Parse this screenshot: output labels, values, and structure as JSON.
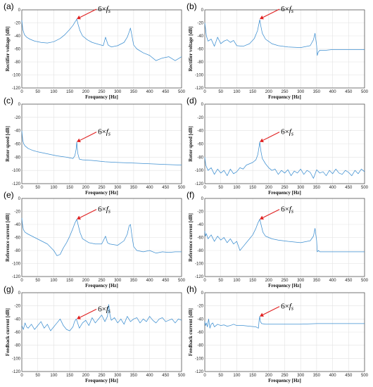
{
  "chart_data": [
    {
      "panel": "(a)",
      "type": "line",
      "xlabel": "Frequency [Hz]",
      "ylabel": "Rectifier voltage [dB]",
      "xlim": [
        0,
        500
      ],
      "ylim": [
        -120,
        0
      ],
      "xticks": [
        "0",
        "50",
        "100",
        "150",
        "200",
        "250",
        "300",
        "350",
        "400",
        "450",
        "500"
      ],
      "yticks": [
        "-120",
        "-100",
        "-80",
        "-60",
        "-40",
        "-20",
        "0"
      ],
      "grid": true,
      "annotation": {
        "text_pre": "6×",
        "text_var": "f",
        "text_sub": "s",
        "x": 172,
        "y": -14
      },
      "series": [
        {
          "x": [
            0,
            3,
            8,
            15,
            25,
            40,
            60,
            80,
            100,
            120,
            135,
            150,
            160,
            166,
            170,
            172,
            176,
            182,
            190,
            205,
            220,
            240,
            255,
            262,
            270,
            280,
            300,
            320,
            330,
            336,
            340,
            344,
            350,
            360,
            380,
            400,
            420,
            440,
            460,
            480,
            500
          ],
          "y": [
            -16,
            -30,
            -38,
            -42,
            -45,
            -48,
            -50,
            -51,
            -49,
            -44,
            -38,
            -30,
            -24,
            -19,
            -16,
            -14,
            -22,
            -32,
            -40,
            -46,
            -50,
            -53,
            -55,
            -42,
            -54,
            -57,
            -55,
            -50,
            -42,
            -34,
            -28,
            -38,
            -54,
            -60,
            -66,
            -70,
            -78,
            -74,
            -72,
            -78,
            -72
          ]
        }
      ]
    },
    {
      "panel": "(b)",
      "type": "line",
      "xlabel": "Frequency [Hz]",
      "ylabel": "Rectifier voltage [dB]",
      "xlim": [
        0,
        500
      ],
      "ylim": [
        -120,
        0
      ],
      "xticks": [
        "0",
        "50",
        "100",
        "150",
        "200",
        "250",
        "300",
        "350",
        "400",
        "450",
        "500"
      ],
      "yticks": [
        "-120",
        "-100",
        "-80",
        "-60",
        "-40",
        "-20",
        "0"
      ],
      "grid": true,
      "annotation": {
        "text_pre": "6×",
        "text_var": "f",
        "text_sub": "s",
        "x": 172,
        "y": -14
      },
      "series": [
        {
          "x": [
            0,
            2,
            5,
            10,
            20,
            30,
            40,
            50,
            60,
            70,
            80,
            90,
            100,
            120,
            140,
            155,
            165,
            170,
            172,
            175,
            180,
            190,
            210,
            230,
            260,
            300,
            330,
            340,
            345,
            350,
            352,
            355,
            360,
            380,
            400,
            430,
            460,
            500
          ],
          "y": [
            -20,
            -28,
            -40,
            -48,
            -45,
            -56,
            -42,
            -52,
            -48,
            -46,
            -50,
            -47,
            -55,
            -56,
            -52,
            -44,
            -32,
            -20,
            -15,
            -24,
            -36,
            -45,
            -52,
            -55,
            -57,
            -58,
            -55,
            -46,
            -36,
            -55,
            -70,
            -65,
            -62,
            -62,
            -61,
            -61,
            -61,
            -61
          ]
        }
      ]
    },
    {
      "panel": "(c)",
      "type": "line",
      "xlabel": "Frequency [Hz]",
      "ylabel": "Rotor speed [dB]",
      "xlim": [
        0,
        500
      ],
      "ylim": [
        -120,
        0
      ],
      "xticks": [
        "0",
        "50",
        "100",
        "150",
        "200",
        "250",
        "300",
        "350",
        "400",
        "450",
        "500"
      ],
      "yticks": [
        "-120",
        "-100",
        "-80",
        "-60",
        "-40",
        "-20",
        "0"
      ],
      "grid": true,
      "annotation": {
        "text_pre": "6×",
        "text_var": "f",
        "text_sub": "s",
        "x": 172,
        "y": -57
      },
      "series": [
        {
          "x": [
            0,
            1,
            3,
            6,
            10,
            20,
            35,
            50,
            80,
            110,
            140,
            160,
            166,
            170,
            172,
            175,
            180,
            190,
            220,
            260,
            300,
            350,
            400,
            450,
            500
          ],
          "y": [
            -40,
            -45,
            -55,
            -60,
            -63,
            -67,
            -70,
            -72,
            -75,
            -78,
            -80,
            -82,
            -78,
            -68,
            -57,
            -74,
            -83,
            -84,
            -85,
            -87,
            -88,
            -89,
            -90,
            -91,
            -92
          ]
        }
      ]
    },
    {
      "panel": "(d)",
      "type": "line",
      "xlabel": "Frequency [Hz]",
      "ylabel": "Rotor speed [dB]",
      "xlim": [
        0,
        500
      ],
      "ylim": [
        -120,
        0
      ],
      "xticks": [
        "0",
        "50",
        "100",
        "150",
        "200",
        "250",
        "300",
        "350",
        "400",
        "450",
        "500"
      ],
      "yticks": [
        "-120",
        "-100",
        "-80",
        "-60",
        "-40",
        "-20",
        "0"
      ],
      "grid": true,
      "annotation": {
        "text_pre": "6×",
        "text_var": "f",
        "text_sub": "s",
        "x": 172,
        "y": -57
      },
      "series": [
        {
          "x": [
            0,
            3,
            10,
            20,
            30,
            40,
            50,
            60,
            70,
            80,
            90,
            100,
            110,
            120,
            130,
            140,
            150,
            160,
            166,
            170,
            172,
            176,
            180,
            190,
            200,
            210,
            220,
            230,
            240,
            250,
            260,
            270,
            280,
            290,
            300,
            310,
            320,
            330,
            340,
            350,
            360,
            370,
            380,
            390,
            400,
            410,
            420,
            430,
            440,
            450,
            460,
            470,
            480,
            490,
            500
          ],
          "y": [
            -80,
            -92,
            -100,
            -96,
            -106,
            -98,
            -104,
            -100,
            -108,
            -98,
            -105,
            -102,
            -96,
            -98,
            -92,
            -90,
            -88,
            -84,
            -76,
            -64,
            -57,
            -72,
            -82,
            -90,
            -96,
            -100,
            -98,
            -106,
            -100,
            -104,
            -99,
            -108,
            -101,
            -104,
            -98,
            -106,
            -100,
            -103,
            -112,
            -99,
            -104,
            -102,
            -108,
            -100,
            -105,
            -98,
            -104,
            -106,
            -100,
            -103,
            -108,
            -100,
            -105,
            -98,
            -102
          ]
        }
      ]
    },
    {
      "panel": "(e)",
      "type": "line",
      "xlabel": "Frequency [Hz]",
      "ylabel": "Reference current [dB]",
      "xlim": [
        0,
        500
      ],
      "ylim": [
        -120,
        0
      ],
      "xticks": [
        "0",
        "50",
        "100",
        "150",
        "200",
        "250",
        "300",
        "350",
        "400",
        "450",
        "500"
      ],
      "yticks": [
        "-120",
        "-100",
        "-80",
        "-60",
        "-40",
        "-20",
        "0"
      ],
      "grid": true,
      "annotation": {
        "text_pre": "6×",
        "text_var": "f",
        "text_sub": "s",
        "x": 172,
        "y": -32
      },
      "series": [
        {
          "x": [
            0,
            2,
            5,
            10,
            20,
            40,
            60,
            80,
            100,
            110,
            120,
            130,
            140,
            150,
            160,
            166,
            170,
            172,
            176,
            182,
            190,
            210,
            230,
            250,
            262,
            268,
            275,
            300,
            320,
            330,
            336,
            340,
            344,
            350,
            360,
            380,
            400,
            420,
            440,
            460,
            480,
            500
          ],
          "y": [
            -30,
            -40,
            -48,
            -52,
            -55,
            -60,
            -65,
            -70,
            -80,
            -88,
            -86,
            -76,
            -68,
            -58,
            -46,
            -38,
            -34,
            -32,
            -40,
            -52,
            -62,
            -68,
            -70,
            -70,
            -58,
            -68,
            -70,
            -72,
            -65,
            -55,
            -42,
            -40,
            -55,
            -74,
            -80,
            -82,
            -80,
            -84,
            -82,
            -83,
            -82,
            -82
          ]
        }
      ]
    },
    {
      "panel": "(f)",
      "type": "line",
      "xlabel": "Frequency [Hz]",
      "ylabel": "Reference current [dB]",
      "xlim": [
        0,
        500
      ],
      "ylim": [
        -120,
        0
      ],
      "xticks": [
        "0",
        "50",
        "100",
        "150",
        "200",
        "250",
        "300",
        "350",
        "400",
        "450",
        "500"
      ],
      "yticks": [
        "-120",
        "-100",
        "-80",
        "-60",
        "-40",
        "-20",
        "0"
      ],
      "grid": true,
      "annotation": {
        "text_pre": "6×",
        "text_var": "f",
        "text_sub": "s",
        "x": 172,
        "y": -32
      },
      "series": [
        {
          "x": [
            0,
            2,
            5,
            10,
            20,
            30,
            40,
            50,
            60,
            70,
            80,
            90,
            100,
            110,
            120,
            130,
            140,
            150,
            160,
            166,
            170,
            172,
            176,
            182,
            190,
            210,
            230,
            260,
            300,
            330,
            340,
            345,
            350,
            352,
            356,
            360,
            380,
            400,
            430,
            460,
            500
          ],
          "y": [
            -50,
            -58,
            -54,
            -62,
            -56,
            -66,
            -58,
            -64,
            -60,
            -68,
            -62,
            -70,
            -66,
            -80,
            -74,
            -68,
            -62,
            -56,
            -46,
            -38,
            -34,
            -32,
            -40,
            -52,
            -58,
            -62,
            -64,
            -66,
            -68,
            -65,
            -58,
            -46,
            -65,
            -82,
            -80,
            -82,
            -82,
            -82,
            -82,
            -82,
            -82
          ]
        }
      ]
    },
    {
      "panel": "(g)",
      "type": "line",
      "xlabel": "Frequency [Hz]",
      "ylabel": "Feedback current [dB]",
      "xlim": [
        0,
        500
      ],
      "ylim": [
        -120,
        0
      ],
      "xticks": [
        "0",
        "50",
        "100",
        "150",
        "200",
        "250",
        "300",
        "350",
        "400",
        "450",
        "500"
      ],
      "yticks": [
        "-120",
        "-100",
        "-80",
        "-60",
        "-40",
        "-20",
        "0"
      ],
      "grid": true,
      "annotation": {
        "text_pre": "6×",
        "text_var": "f",
        "text_sub": "s",
        "x": 172,
        "y": -40
      },
      "series": [
        {
          "x": [
            0,
            5,
            10,
            15,
            20,
            30,
            40,
            50,
            60,
            70,
            80,
            90,
            100,
            110,
            120,
            130,
            140,
            150,
            160,
            165,
            170,
            172,
            176,
            180,
            190,
            200,
            210,
            220,
            230,
            240,
            250,
            260,
            268,
            272,
            276,
            280,
            290,
            300,
            310,
            320,
            330,
            340,
            350,
            360,
            370,
            380,
            390,
            400,
            410,
            420,
            430,
            440,
            450,
            460,
            470,
            480,
            490,
            500
          ],
          "y": [
            -50,
            -56,
            -46,
            -52,
            -54,
            -48,
            -56,
            -50,
            -44,
            -54,
            -48,
            -58,
            -52,
            -46,
            -40,
            -50,
            -56,
            -58,
            -52,
            -44,
            -40,
            -42,
            -48,
            -54,
            -46,
            -42,
            -50,
            -38,
            -46,
            -40,
            -34,
            -44,
            -36,
            -18,
            -34,
            -42,
            -38,
            -46,
            -40,
            -48,
            -36,
            -44,
            -40,
            -38,
            -46,
            -40,
            -44,
            -36,
            -42,
            -46,
            -40,
            -38,
            -44,
            -42,
            -40,
            -46,
            -40,
            -42
          ]
        }
      ]
    },
    {
      "panel": "(h)",
      "type": "line",
      "xlabel": "Frequency [Hz]",
      "ylabel": "Feedback current [dB]",
      "xlim": [
        0,
        500
      ],
      "ylim": [
        -120,
        0
      ],
      "xticks": [
        "0",
        "50",
        "100",
        "150",
        "200",
        "250",
        "300",
        "350",
        "400",
        "450",
        "500"
      ],
      "yticks": [
        "-120",
        "-100",
        "-80",
        "-60",
        "-40",
        "-20",
        "0"
      ],
      "grid": true,
      "annotation": {
        "text_pre": "6×",
        "text_var": "f",
        "text_sub": "s",
        "x": 172,
        "y": -36
      },
      "series": [
        {
          "x": [
            0,
            2,
            5,
            8,
            12,
            16,
            20,
            25,
            30,
            40,
            50,
            60,
            70,
            80,
            90,
            100,
            120,
            140,
            160,
            168,
            170,
            172,
            174,
            178,
            190,
            220,
            260,
            300,
            350,
            400,
            450,
            500
          ],
          "y": [
            -44,
            -50,
            -46,
            -52,
            -40,
            -54,
            -48,
            -46,
            -52,
            -48,
            -50,
            -49,
            -51,
            -50,
            -48,
            -50,
            -50,
            -51,
            -52,
            -54,
            -42,
            -36,
            -44,
            -47,
            -48,
            -48,
            -48,
            -48,
            -47,
            -47,
            -47,
            -47
          ]
        }
      ]
    }
  ]
}
